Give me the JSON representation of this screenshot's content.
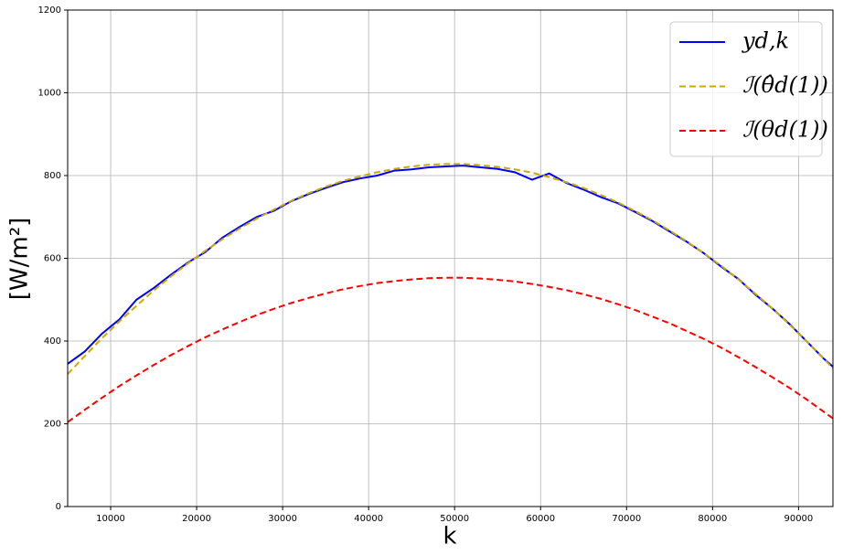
{
  "chart_data": {
    "type": "line",
    "xlabel": "k",
    "ylabel": "[W/m²]",
    "x": [
      5000,
      7000,
      9000,
      11000,
      13000,
      15000,
      17000,
      19000,
      21000,
      23000,
      25000,
      27000,
      29000,
      31000,
      33000,
      35000,
      37000,
      39000,
      41000,
      43000,
      45000,
      47000,
      49000,
      51000,
      53000,
      55000,
      57000,
      59000,
      61000,
      63000,
      65000,
      67000,
      69000,
      71000,
      73000,
      75000,
      77000,
      79000,
      81000,
      83000,
      85000,
      87000,
      89000,
      91000,
      93000,
      94000
    ],
    "series": [
      {
        "name": "yd,k",
        "color": "#0000ff",
        "linestyle": "solid",
        "values": [
          345,
          375,
          418,
          452,
          500,
          528,
          560,
          590,
          615,
          650,
          676,
          700,
          715,
          738,
          755,
          770,
          784,
          793,
          800,
          812,
          815,
          820,
          822,
          824,
          820,
          816,
          808,
          790,
          805,
          782,
          766,
          748,
          733,
          712,
          690,
          665,
          640,
          612,
          580,
          550,
          512,
          478,
          440,
          398,
          356,
          338
        ]
      },
      {
        "name": "ℐ(θ̂d(1))",
        "color": "#ccaa00",
        "linestyle": "dashed",
        "values": [
          320,
          364,
          407,
          447,
          485,
          522,
          556,
          588,
          618,
          646,
          672,
          696,
          718,
          739,
          757,
          773,
          787,
          798,
          808,
          816,
          822,
          826,
          828,
          828,
          825,
          821,
          815,
          807,
          796,
          784,
          770,
          753,
          735,
          714,
          692,
          667,
          641,
          612,
          582,
          549,
          514,
          478,
          439,
          398,
          356,
          334
        ]
      },
      {
        "name": "ℐ(θd(1))",
        "color": "#ff0000",
        "linestyle": "dashed",
        "values": [
          204,
          234,
          263,
          291,
          317,
          342,
          366,
          388,
          409,
          428,
          446,
          463,
          478,
          492,
          504,
          515,
          525,
          533,
          540,
          545,
          549,
          552,
          553,
          553,
          551,
          548,
          544,
          538,
          531,
          523,
          513,
          502,
          489,
          475,
          459,
          443,
          424,
          405,
          384,
          361,
          337,
          312,
          286,
          258,
          228,
          213
        ]
      }
    ],
    "xlim": [
      5000,
      94000
    ],
    "ylim": [
      0,
      1200
    ],
    "xticks": [
      10000,
      20000,
      30000,
      40000,
      50000,
      60000,
      70000,
      80000,
      90000
    ],
    "yticks": [
      0,
      200,
      400,
      600,
      800,
      1000,
      1200
    ],
    "grid": true,
    "legend": "upper right"
  }
}
